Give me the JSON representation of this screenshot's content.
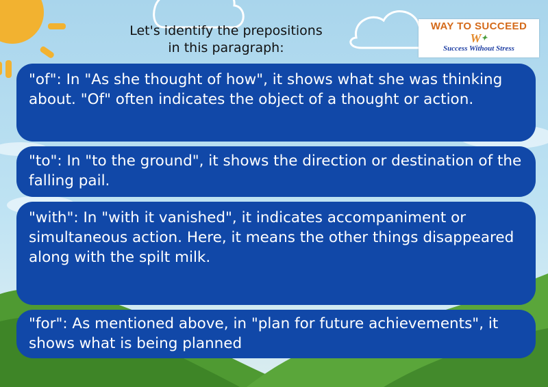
{
  "heading": {
    "line1": "Let's identify the prepositions",
    "line2": "in this paragraph:"
  },
  "logo": {
    "title": "WAY TO SUCCEED",
    "mark": "W",
    "tagline": "Success Without Stress"
  },
  "cards": [
    {
      "text": "\"of\": In \"As she thought of how\", it shows what she was thinking about. \"Of\" often indicates the object of a thought or action."
    },
    {
      "text": "\"to\": In \"to the ground\", it shows the direction or destination of the falling pail."
    },
    {
      "text": "\"with\": In \"with it vanished\", it indicates accompaniment or simultaneous action. Here, it means the other things disappeared along with the spilt milk."
    },
    {
      "text": "\"for\": As mentioned above, in \"plan for future achievements\", it shows what is being planned"
    }
  ],
  "colors": {
    "card": "#1148a8",
    "sky": "#bfe3f3",
    "sun": "#f2b230",
    "grass": "#4f9a32"
  }
}
